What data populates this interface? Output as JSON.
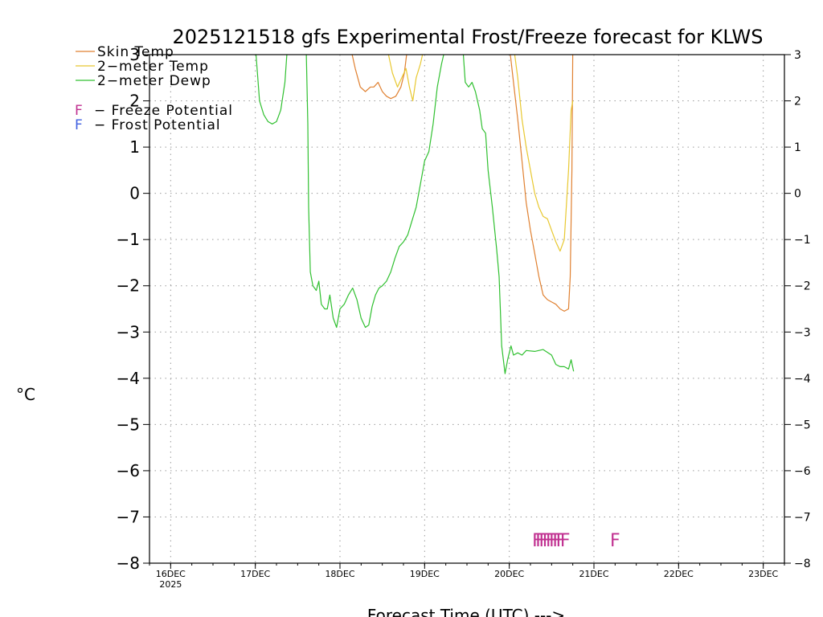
{
  "chart_data": {
    "type": "line",
    "title": "2025121518 gfs Experimental Frost/Freeze forecast for KLWS",
    "ylabel": "°C",
    "xlabel": "Forecast Time (UTC) --->",
    "ylim": [
      -8,
      3
    ],
    "xlim": [
      -0.25,
      7.25
    ],
    "yticks": [
      3,
      2,
      1,
      0,
      -1,
      -2,
      -3,
      -4,
      -5,
      -6,
      -7,
      -8
    ],
    "ytick_labels": [
      "3",
      "2",
      "1",
      "0",
      "−1",
      "−2",
      "−3",
      "−4",
      "−5",
      "−6",
      "−7",
      "−8"
    ],
    "xticks": [
      {
        "x": 0,
        "label": "16DEC",
        "sublabel": "2025"
      },
      {
        "x": 1,
        "label": "17DEC"
      },
      {
        "x": 2,
        "label": "18DEC"
      },
      {
        "x": 3,
        "label": "19DEC"
      },
      {
        "x": 4,
        "label": "20DEC"
      },
      {
        "x": 5,
        "label": "21DEC"
      },
      {
        "x": 6,
        "label": "22DEC"
      },
      {
        "x": 7,
        "label": "23DEC"
      }
    ],
    "grid": true,
    "legend_position": "top-left",
    "series": [
      {
        "name": "Skin Temp",
        "label": "Skin Temp",
        "color": "#e08030",
        "segments": [
          [
            [
              2.12,
              3.2
            ],
            [
              2.18,
              2.7
            ],
            [
              2.24,
              2.3
            ],
            [
              2.3,
              2.2
            ],
            [
              2.36,
              2.3
            ],
            [
              2.4,
              2.3
            ],
            [
              2.45,
              2.4
            ],
            [
              2.5,
              2.2
            ],
            [
              2.55,
              2.1
            ],
            [
              2.6,
              2.05
            ],
            [
              2.66,
              2.1
            ],
            [
              2.72,
              2.3
            ],
            [
              2.76,
              2.6
            ],
            [
              2.8,
              3.2
            ]
          ],
          [
            [
              4.0,
              3.2
            ],
            [
              4.05,
              2.4
            ],
            [
              4.1,
              1.6
            ],
            [
              4.15,
              0.7
            ],
            [
              4.2,
              -0.2
            ],
            [
              4.25,
              -0.8
            ],
            [
              4.3,
              -1.3
            ],
            [
              4.35,
              -1.8
            ],
            [
              4.4,
              -2.2
            ],
            [
              4.45,
              -2.3
            ],
            [
              4.5,
              -2.35
            ],
            [
              4.55,
              -2.4
            ],
            [
              4.6,
              -2.5
            ],
            [
              4.65,
              -2.55
            ],
            [
              4.7,
              -2.5
            ],
            [
              4.72,
              -1.8
            ],
            [
              4.74,
              0.5
            ],
            [
              4.75,
              3.2
            ]
          ]
        ]
      },
      {
        "name": "2-meter Temp",
        "label": "2−meter Temp",
        "color": "#e8c830",
        "segments": [
          [
            [
              2.55,
              3.2
            ],
            [
              2.62,
              2.6
            ],
            [
              2.68,
              2.3
            ],
            [
              2.73,
              2.5
            ],
            [
              2.78,
              2.7
            ],
            [
              2.82,
              2.3
            ],
            [
              2.86,
              2.0
            ],
            [
              2.9,
              2.5
            ],
            [
              2.95,
              2.8
            ],
            [
              3.0,
              3.2
            ]
          ],
          [
            [
              4.05,
              3.2
            ],
            [
              4.1,
              2.5
            ],
            [
              4.15,
              1.6
            ],
            [
              4.2,
              1.0
            ],
            [
              4.25,
              0.5
            ],
            [
              4.3,
              0.0
            ],
            [
              4.35,
              -0.3
            ],
            [
              4.4,
              -0.5
            ],
            [
              4.45,
              -0.55
            ],
            [
              4.5,
              -0.8
            ],
            [
              4.55,
              -1.05
            ],
            [
              4.6,
              -1.25
            ],
            [
              4.65,
              -1.0
            ],
            [
              4.7,
              0.5
            ],
            [
              4.73,
              1.8
            ],
            [
              4.75,
              2.0
            ]
          ]
        ]
      },
      {
        "name": "2-meter Dewp",
        "label": "2−meter Dewp",
        "color": "#30c030",
        "segments": [
          [
            [
              1.0,
              3.2
            ],
            [
              1.05,
              2.0
            ],
            [
              1.1,
              1.7
            ],
            [
              1.15,
              1.55
            ],
            [
              1.2,
              1.5
            ],
            [
              1.25,
              1.55
            ],
            [
              1.3,
              1.8
            ],
            [
              1.35,
              2.4
            ],
            [
              1.38,
              3.2
            ]
          ],
          [
            [
              1.6,
              3.2
            ],
            [
              1.62,
              1.5
            ],
            [
              1.63,
              -0.3
            ],
            [
              1.65,
              -1.7
            ],
            [
              1.68,
              -2.0
            ],
            [
              1.72,
              -2.1
            ],
            [
              1.75,
              -1.9
            ],
            [
              1.78,
              -2.4
            ],
            [
              1.82,
              -2.5
            ],
            [
              1.85,
              -2.5
            ],
            [
              1.88,
              -2.2
            ],
            [
              1.92,
              -2.7
            ],
            [
              1.96,
              -2.9
            ],
            [
              2.0,
              -2.5
            ],
            [
              2.05,
              -2.4
            ],
            [
              2.1,
              -2.2
            ],
            [
              2.15,
              -2.05
            ],
            [
              2.2,
              -2.3
            ],
            [
              2.25,
              -2.7
            ],
            [
              2.3,
              -2.9
            ],
            [
              2.34,
              -2.85
            ],
            [
              2.38,
              -2.45
            ],
            [
              2.42,
              -2.2
            ],
            [
              2.46,
              -2.05
            ],
            [
              2.5,
              -2.0
            ],
            [
              2.55,
              -1.9
            ],
            [
              2.6,
              -1.7
            ],
            [
              2.65,
              -1.4
            ],
            [
              2.7,
              -1.15
            ],
            [
              2.75,
              -1.05
            ],
            [
              2.8,
              -0.9
            ],
            [
              2.85,
              -0.6
            ],
            [
              2.9,
              -0.3
            ],
            [
              2.95,
              0.2
            ],
            [
              3.0,
              0.7
            ],
            [
              3.05,
              0.9
            ],
            [
              3.1,
              1.5
            ],
            [
              3.15,
              2.3
            ],
            [
              3.2,
              2.8
            ],
            [
              3.25,
              3.2
            ]
          ],
          [
            [
              3.45,
              3.2
            ],
            [
              3.48,
              2.4
            ],
            [
              3.52,
              2.3
            ],
            [
              3.56,
              2.4
            ],
            [
              3.6,
              2.2
            ],
            [
              3.65,
              1.8
            ],
            [
              3.68,
              1.4
            ],
            [
              3.72,
              1.3
            ],
            [
              3.75,
              0.5
            ],
            [
              3.8,
              -0.3
            ],
            [
              3.85,
              -1.2
            ],
            [
              3.88,
              -1.8
            ],
            [
              3.91,
              -3.3
            ],
            [
              3.95,
              -3.9
            ],
            [
              3.98,
              -3.6
            ],
            [
              4.02,
              -3.3
            ],
            [
              4.05,
              -3.5
            ],
            [
              4.1,
              -3.45
            ],
            [
              4.15,
              -3.5
            ],
            [
              4.2,
              -3.4
            ],
            [
              4.3,
              -3.42
            ],
            [
              4.4,
              -3.38
            ],
            [
              4.5,
              -3.5
            ],
            [
              4.55,
              -3.7
            ],
            [
              4.6,
              -3.75
            ],
            [
              4.65,
              -3.75
            ],
            [
              4.7,
              -3.8
            ],
            [
              4.73,
              -3.6
            ],
            [
              4.76,
              -3.85
            ]
          ]
        ]
      }
    ],
    "potential_legend": [
      {
        "mark": "F",
        "label": "− Freeze Potential",
        "color": "#c03090"
      },
      {
        "mark": "F",
        "label": "− Frost Potential",
        "color": "#4060e0"
      }
    ],
    "freeze_marks": {
      "symbol": "F",
      "color": "#c03090",
      "y": -7.5,
      "x": [
        4.33,
        4.37,
        4.41,
        4.45,
        4.49,
        4.53,
        4.57,
        4.61,
        4.66,
        5.25
      ]
    }
  }
}
